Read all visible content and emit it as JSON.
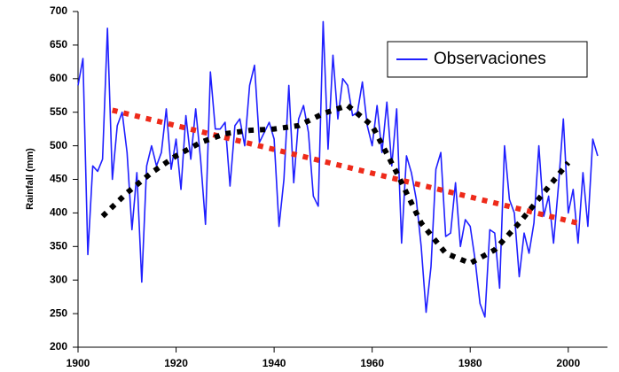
{
  "chart_data": {
    "type": "line",
    "y_label": "Rainfall (mm)",
    "x": [
      1900,
      1901,
      1902,
      1903,
      1904,
      1905,
      1906,
      1907,
      1908,
      1909,
      1910,
      1911,
      1912,
      1913,
      1914,
      1915,
      1916,
      1917,
      1918,
      1919,
      1920,
      1921,
      1922,
      1923,
      1924,
      1925,
      1926,
      1927,
      1928,
      1929,
      1930,
      1931,
      1932,
      1933,
      1934,
      1935,
      1936,
      1937,
      1938,
      1939,
      1940,
      1941,
      1942,
      1943,
      1944,
      1945,
      1946,
      1947,
      1948,
      1949,
      1950,
      1951,
      1952,
      1953,
      1954,
      1955,
      1956,
      1957,
      1958,
      1959,
      1960,
      1961,
      1962,
      1963,
      1964,
      1965,
      1966,
      1967,
      1968,
      1969,
      1970,
      1971,
      1972,
      1973,
      1974,
      1975,
      1976,
      1977,
      1978,
      1979,
      1980,
      1981,
      1982,
      1983,
      1984,
      1985,
      1986,
      1987,
      1988,
      1989,
      1990,
      1991,
      1992,
      1993,
      1994,
      1995,
      1996,
      1997,
      1998,
      1999,
      2000,
      2001,
      2002,
      2003,
      2004,
      2005,
      2006
    ],
    "series": [
      {
        "name": "Observaciones",
        "color": "#1f1fff",
        "style": "solid",
        "values": [
          590,
          630,
          338,
          470,
          462,
          480,
          675,
          450,
          530,
          550,
          490,
          375,
          460,
          297,
          470,
          500,
          470,
          490,
          555,
          465,
          510,
          435,
          545,
          480,
          555,
          480,
          383,
          610,
          525,
          525,
          535,
          440,
          530,
          540,
          500,
          590,
          620,
          505,
          520,
          535,
          510,
          380,
          450,
          590,
          445,
          540,
          560,
          520,
          425,
          410,
          685,
          495,
          635,
          540,
          600,
          590,
          545,
          550,
          595,
          530,
          500,
          560,
          490,
          565,
          470,
          555,
          355,
          485,
          460,
          420,
          350,
          252,
          320,
          465,
          490,
          365,
          370,
          445,
          350,
          390,
          380,
          330,
          265,
          245,
          375,
          370,
          288,
          500,
          420,
          400,
          305,
          370,
          340,
          385,
          500,
          395,
          425,
          355,
          440,
          540,
          400,
          435,
          355,
          460,
          380,
          510,
          485
        ]
      },
      {
        "color": "#ee2a1a",
        "style": "dotted",
        "x": [
          1907,
          2003
        ],
        "values": [
          553,
          383
        ]
      },
      {
        "color": "#000000",
        "style": "dotted",
        "x": [
          1905,
          1910,
          1915,
          1920,
          1925,
          1930,
          1935,
          1940,
          1945,
          1950,
          1955,
          1960,
          1965,
          1970,
          1975,
          1980,
          1985,
          1990,
          1995,
          2000
        ],
        "values": [
          395,
          430,
          460,
          485,
          505,
          518,
          523,
          525,
          530,
          548,
          560,
          530,
          460,
          385,
          340,
          325,
          345,
          385,
          430,
          475
        ]
      }
    ],
    "xlim": [
      1900,
      2008
    ],
    "xticks": [
      1900,
      1920,
      1940,
      1960,
      1980,
      2000
    ],
    "ylim": [
      200,
      700
    ],
    "yticks": [
      200,
      250,
      300,
      350,
      400,
      450,
      500,
      550,
      600,
      650,
      700
    ],
    "legend": "top-right"
  }
}
